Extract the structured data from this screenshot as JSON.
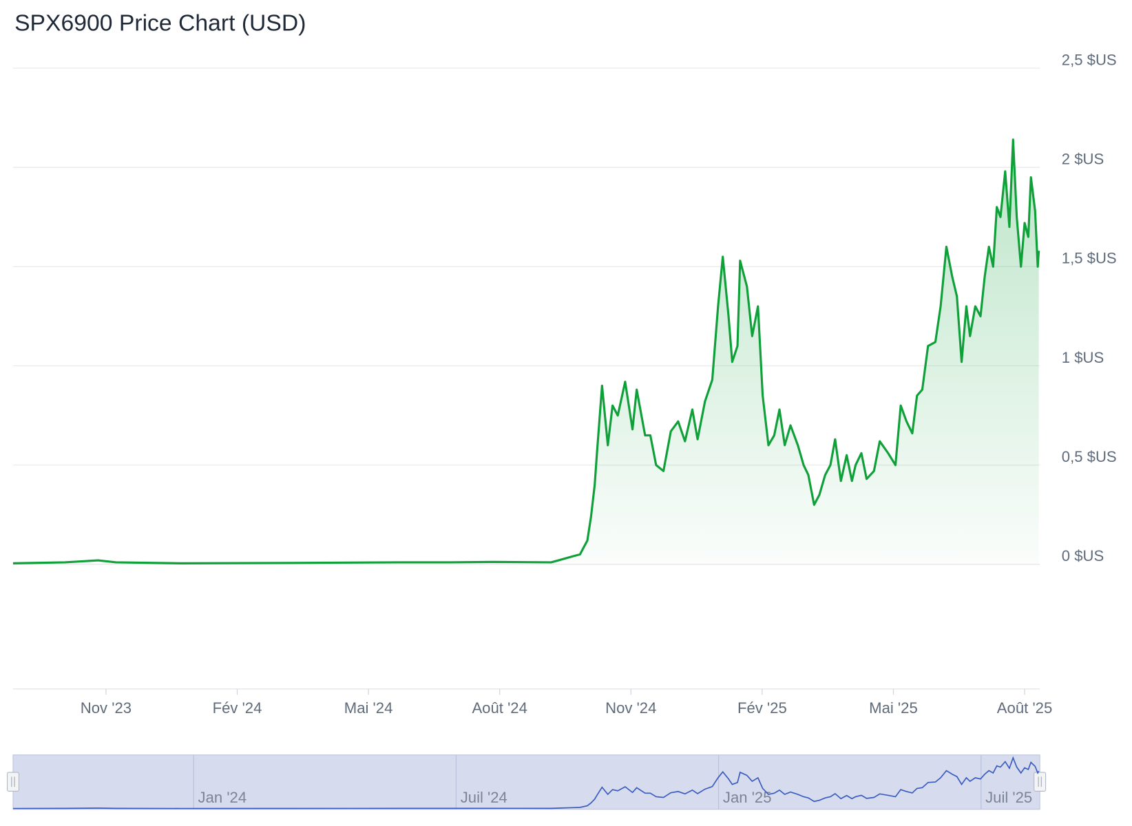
{
  "chart_data": {
    "type": "line",
    "title": "SPX6900 Price Chart (USD)",
    "x": [
      2023.656,
      2023.755,
      2023.818,
      2023.852,
      2023.976,
      2024.184,
      2024.391,
      2024.488,
      2024.57,
      2024.681,
      2024.695,
      2024.722,
      2024.736,
      2024.75,
      2024.757,
      2024.764,
      2024.768,
      2024.778,
      2024.789,
      2024.798,
      2024.808,
      2024.822,
      2024.836,
      2024.844,
      2024.86,
      2024.87,
      2024.881,
      2024.895,
      2024.909,
      2024.923,
      2024.936,
      2024.95,
      2024.96,
      2024.974,
      2024.988,
      2024.999,
      2025.008,
      2025.019,
      2025.026,
      2025.036,
      2025.041,
      2025.054,
      2025.064,
      2025.075,
      2025.084,
      2025.095,
      2025.106,
      2025.116,
      2025.126,
      2025.137,
      2025.151,
      2025.162,
      2025.171,
      2025.182,
      2025.192,
      2025.203,
      2025.213,
      2025.222,
      2025.233,
      2025.244,
      2025.254,
      2025.261,
      2025.272,
      2025.282,
      2025.296,
      2025.307,
      2025.323,
      2025.337,
      2025.347,
      2025.358,
      2025.369,
      2025.378,
      2025.388,
      2025.399,
      2025.413,
      2025.423,
      2025.434,
      2025.445,
      2025.454,
      2025.463,
      2025.472,
      2025.479,
      2025.489,
      2025.499,
      2025.507,
      2025.515,
      2025.523,
      2025.53,
      2025.537,
      2025.546,
      2025.554,
      2025.561,
      2025.568,
      2025.576,
      2025.583,
      2025.59,
      2025.595,
      2025.603,
      2025.608,
      2025.61
    ],
    "series": [
      {
        "color": "#0fa03a",
        "values": [
          0.005,
          0.01,
          0.02,
          0.01,
          0.005,
          0.007,
          0.01,
          0.01,
          0.012,
          0.01,
          0.02,
          0.04,
          0.05,
          0.12,
          0.24,
          0.4,
          0.55,
          0.9,
          0.6,
          0.8,
          0.75,
          0.92,
          0.68,
          0.88,
          0.65,
          0.65,
          0.5,
          0.47,
          0.67,
          0.72,
          0.62,
          0.78,
          0.63,
          0.82,
          0.93,
          1.3,
          1.55,
          1.25,
          1.02,
          1.1,
          1.53,
          1.4,
          1.15,
          1.3,
          0.85,
          0.6,
          0.65,
          0.78,
          0.6,
          0.7,
          0.6,
          0.5,
          0.45,
          0.3,
          0.35,
          0.45,
          0.5,
          0.63,
          0.42,
          0.55,
          0.42,
          0.5,
          0.56,
          0.43,
          0.47,
          0.62,
          0.56,
          0.5,
          0.8,
          0.72,
          0.66,
          0.85,
          0.88,
          1.1,
          1.12,
          1.3,
          1.6,
          1.45,
          1.35,
          1.02,
          1.3,
          1.15,
          1.3,
          1.25,
          1.45,
          1.6,
          1.5,
          1.8,
          1.75,
          1.98,
          1.7,
          2.14,
          1.75,
          1.5,
          1.72,
          1.65,
          1.95,
          1.78,
          1.5,
          1.58
        ]
      }
    ],
    "xlim": [
      2023.656,
      2025.612
    ],
    "xticks": [
      {
        "value": 2023.833,
        "label": "Nov '23"
      },
      {
        "value": 2024.083,
        "label": "Fév '24"
      },
      {
        "value": 2024.333,
        "label": "Mai '24"
      },
      {
        "value": 2024.583,
        "label": "Août '24"
      },
      {
        "value": 2024.833,
        "label": "Nov '24"
      },
      {
        "value": 2025.083,
        "label": "Fév '25"
      },
      {
        "value": 2025.333,
        "label": "Mai '25"
      },
      {
        "value": 2025.583,
        "label": "Août '25"
      }
    ],
    "ylim": [
      -0.628,
      2.5
    ],
    "yticks": [
      {
        "value": 0,
        "label": "0 $US"
      },
      {
        "value": 0.5,
        "label": "0,5 $US"
      },
      {
        "value": 1,
        "label": "1 $US"
      },
      {
        "value": 1.5,
        "label": "1,5 $US"
      },
      {
        "value": 2,
        "label": "2 $US"
      },
      {
        "value": 2.5,
        "label": "2,5 $US"
      }
    ],
    "grid": true,
    "navigator": {
      "color": "#3a5bbf",
      "xticks": [
        {
          "value": 2024.0,
          "label": "Jan '24"
        },
        {
          "value": 2024.5,
          "label": "Juil '24"
        },
        {
          "value": 2025.0,
          "label": "Jan '25"
        },
        {
          "value": 2025.5,
          "label": "Juil '25"
        }
      ]
    }
  }
}
